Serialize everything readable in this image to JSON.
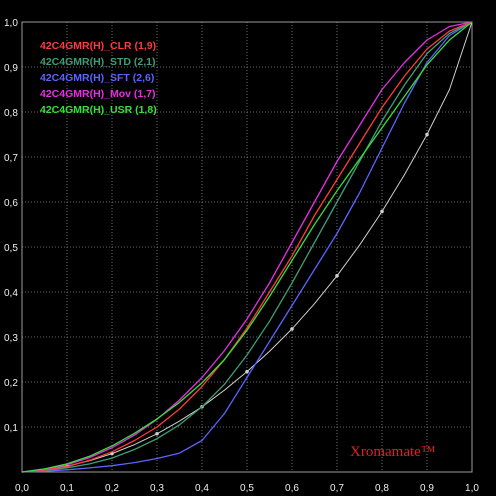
{
  "chart_data": {
    "type": "line",
    "xlim": [
      0,
      1
    ],
    "ylim": [
      0,
      1
    ],
    "grid": true,
    "legend_position": "top-left",
    "x_ticks": [
      "0,0",
      "0,1",
      "0,2",
      "0,3",
      "0,4",
      "0,5",
      "0,6",
      "0,7",
      "0,8",
      "0,9",
      "1,0"
    ],
    "y_ticks": [
      "1,0",
      "0,9",
      "0,8",
      "0,7",
      "0,6",
      "0,5",
      "0,4",
      "0,3",
      "0,2",
      "0,1"
    ],
    "x": [
      0,
      0.05,
      0.1,
      0.15,
      0.2,
      0.25,
      0.3,
      0.35,
      0.4,
      0.45,
      0.5,
      0.55,
      0.6,
      0.65,
      0.7,
      0.75,
      0.8,
      0.85,
      0.9,
      0.95,
      1.0
    ],
    "series": [
      {
        "name": "42C4GMR(H)_CLR (1,9)",
        "color": "#ff3b3b",
        "values": [
          0,
          0.004,
          0.012,
          0.026,
          0.045,
          0.07,
          0.1,
          0.14,
          0.19,
          0.25,
          0.32,
          0.4,
          0.48,
          0.57,
          0.65,
          0.73,
          0.81,
          0.88,
          0.94,
          0.98,
          1.0
        ]
      },
      {
        "name": "42C4GMR(H)_STD (2,1)",
        "color": "#3d9e78",
        "values": [
          0,
          0.003,
          0.009,
          0.018,
          0.031,
          0.05,
          0.074,
          0.105,
          0.145,
          0.195,
          0.26,
          0.335,
          0.42,
          0.51,
          0.6,
          0.69,
          0.78,
          0.86,
          0.93,
          0.975,
          1.0
        ]
      },
      {
        "name": "42C4GMR(H)_SFT (2,6)",
        "color": "#5b63ff",
        "values": [
          0,
          0.002,
          0.005,
          0.009,
          0.014,
          0.021,
          0.03,
          0.042,
          0.07,
          0.13,
          0.21,
          0.29,
          0.37,
          0.45,
          0.53,
          0.62,
          0.72,
          0.82,
          0.91,
          0.97,
          1.0
        ]
      },
      {
        "name": "42C4GMR(H)_Mov (1,7)",
        "color": "#e62fe6",
        "values": [
          0,
          0.006,
          0.016,
          0.032,
          0.054,
          0.082,
          0.117,
          0.16,
          0.21,
          0.27,
          0.34,
          0.42,
          0.51,
          0.6,
          0.69,
          0.77,
          0.85,
          0.91,
          0.96,
          0.99,
          1.0
        ]
      },
      {
        "name": "42C4GMR(H)_USR (1,8)",
        "color": "#36e036",
        "values": [
          0,
          0.007,
          0.018,
          0.035,
          0.058,
          0.086,
          0.118,
          0.155,
          0.198,
          0.25,
          0.315,
          0.39,
          0.47,
          0.55,
          0.625,
          0.695,
          0.765,
          0.835,
          0.905,
          0.96,
          1.0
        ]
      },
      {
        "name": "",
        "color": "#cfcfcf",
        "values": [
          0,
          0.005,
          0.013,
          0.025,
          0.041,
          0.061,
          0.085,
          0.113,
          0.145,
          0.182,
          0.223,
          0.268,
          0.318,
          0.374,
          0.436,
          0.504,
          0.579,
          0.661,
          0.75,
          0.85,
          1.0
        ]
      }
    ],
    "watermark": "Xromamate™"
  }
}
